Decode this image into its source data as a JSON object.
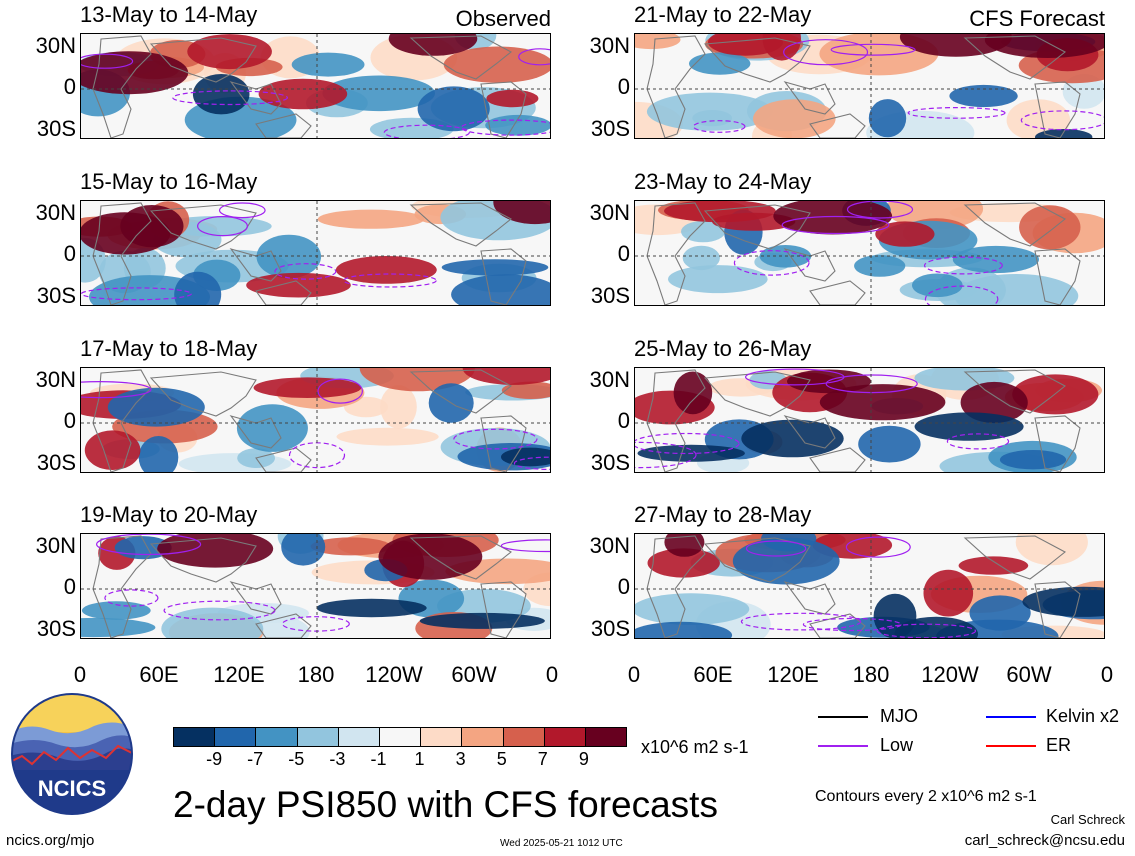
{
  "panels": [
    {
      "title": "13-May to 14-May",
      "label": "Observed",
      "kind": "obs",
      "seed": 11
    },
    {
      "title": "21-May to 22-May",
      "label": "CFS Forecast",
      "kind": "fc",
      "seed": 21
    },
    {
      "title": "15-May to 16-May",
      "label": "",
      "kind": "obs",
      "seed": 12
    },
    {
      "title": "23-May to 24-May",
      "label": "",
      "kind": "fc",
      "seed": 22
    },
    {
      "title": "17-May to 18-May",
      "label": "",
      "kind": "obs",
      "seed": 13
    },
    {
      "title": "25-May to 26-May",
      "label": "",
      "kind": "fc",
      "seed": 23
    },
    {
      "title": "19-May to 20-May",
      "label": "",
      "kind": "obs",
      "seed": 14
    },
    {
      "title": "27-May to 28-May",
      "label": "",
      "kind": "fc",
      "seed": 24
    }
  ],
  "lat_labels": [
    "30N",
    "0",
    "30S"
  ],
  "lon_labels": [
    "0",
    "60E",
    "120E",
    "180",
    "120W",
    "60W",
    "0"
  ],
  "colorbar": {
    "ticks": [
      "-9",
      "-7",
      "-5",
      "-3",
      "-1",
      "1",
      "3",
      "5",
      "7",
      "9"
    ],
    "units": "x10^6 m2 s-1",
    "colors": [
      "#053061",
      "#2166ac",
      "#4393c3",
      "#92c5de",
      "#d1e5f0",
      "#f7f7f7",
      "#fddbc7",
      "#f4a582",
      "#d6604d",
      "#b2182b",
      "#67001f"
    ]
  },
  "legend": [
    {
      "label": "MJO",
      "color": "#000000"
    },
    {
      "label": "Kelvin x2",
      "color": "#0000ff"
    },
    {
      "label": "Low",
      "color": "#a020f0"
    },
    {
      "label": "ER",
      "color": "#ff0000"
    }
  ],
  "logo_text": "NCICS",
  "main_title": "2-day PSI850 with CFS forecasts",
  "contours_note": "Contours every 2 x10^6 m2 s-1",
  "author": "Carl Schreck",
  "email": "carl_schreck@ncsu.edu",
  "site": "ncics.org/mjo",
  "timestamp": "Wed 2025-05-21 1012 UTC"
}
